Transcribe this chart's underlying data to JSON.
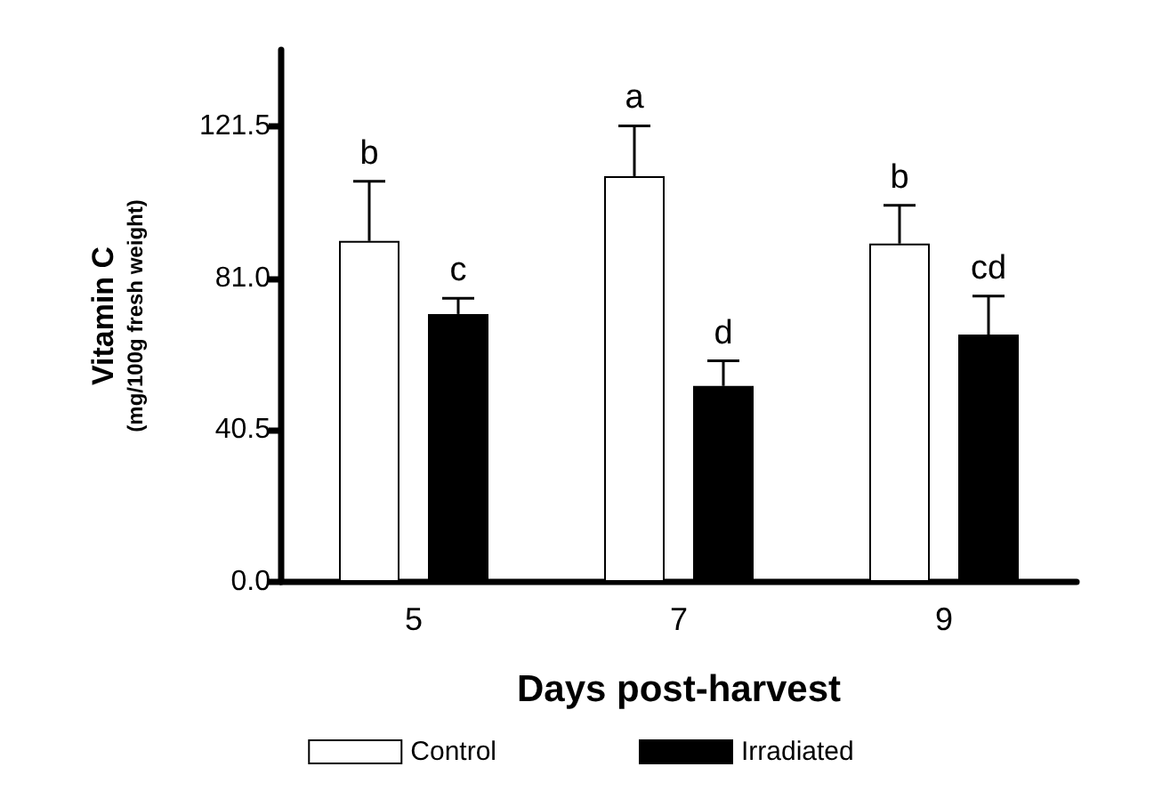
{
  "chart_data": {
    "type": "bar",
    "xlabel": "Days post-harvest",
    "ylabel": "Vitamin C\n(mg/100g fresh weight)",
    "categories": [
      "5",
      "7",
      "9"
    ],
    "series": [
      {
        "name": "Control",
        "color": "#ffffff",
        "values": [
          91.0,
          108.3,
          90.3
        ],
        "errors": [
          15.9,
          13.4,
          10.2
        ],
        "value_labels": [
          "b",
          "a",
          "b"
        ]
      },
      {
        "name": "Irradiated",
        "color": "#000000",
        "values": [
          71.5,
          52.3,
          66.0
        ],
        "errors": [
          4.2,
          6.7,
          10.3
        ],
        "value_labels": [
          "c",
          "d",
          "cd"
        ]
      }
    ],
    "ylim": [
      0,
      142
    ],
    "yticks": [
      {
        "value": 0,
        "label": "0.0"
      },
      40.5,
      {
        "value": 81,
        "label": "81.0"
      },
      121.5
    ],
    "grid": false,
    "legend": "bottom"
  }
}
